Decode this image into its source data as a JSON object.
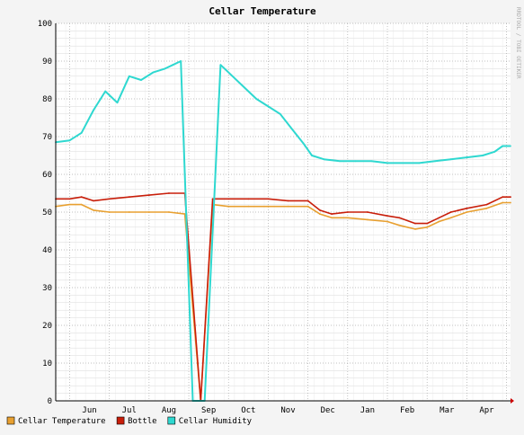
{
  "chart_data": {
    "type": "line",
    "title": "Cellar Temperature",
    "watermark": "RRDTOOL / TOBI OETIKER",
    "ylim": [
      0,
      100
    ],
    "y_ticks": [
      0,
      10,
      20,
      30,
      40,
      50,
      60,
      70,
      80,
      90,
      100
    ],
    "x_months": [
      "Jun",
      "Jul",
      "Aug",
      "Sep",
      "Oct",
      "Nov",
      "Dec",
      "Jan",
      "Feb",
      "Mar",
      "Apr"
    ],
    "x_month_positions": [
      0.5,
      1.5,
      2.5,
      3.5,
      4.5,
      5.5,
      6.5,
      7.5,
      8.5,
      9.5,
      10.5
    ],
    "x_range": [
      -0.35,
      11.1
    ],
    "grid": true,
    "legend_position": "bottom",
    "colors": {
      "background": "#f4f4f4",
      "grid": "#aaaaaa",
      "axis": "#000000",
      "cellar_temperature": "#e8a030",
      "bottle": "#c81e0a",
      "cellar_humidity": "#2ed8d0",
      "humidity_range": "#1a7a6a"
    },
    "series": [
      {
        "name": "Cellar Temperature",
        "color": "#e8a030",
        "x": [
          -0.35,
          0,
          0.3,
          0.6,
          1,
          1.5,
          2,
          2.5,
          2.9,
          3.3,
          3.6,
          4,
          4.5,
          5,
          5.5,
          6,
          6.3,
          6.6,
          7,
          7.5,
          8,
          8.3,
          8.7,
          9,
          9.3,
          9.6,
          10,
          10.5,
          10.9,
          11.1
        ],
        "values": [
          51.5,
          52,
          52,
          50.5,
          50,
          50,
          50,
          50,
          49.5,
          0,
          52,
          51.5,
          51.5,
          51.5,
          51.5,
          51.5,
          49.5,
          48.5,
          48.5,
          48,
          47.5,
          46.5,
          45.5,
          46,
          47.5,
          48.5,
          50,
          51,
          52.5,
          52.5
        ]
      },
      {
        "name": "Bottle",
        "color": "#c81e0a",
        "x": [
          -0.35,
          0,
          0.3,
          0.6,
          1,
          1.5,
          2,
          2.5,
          2.9,
          3.3,
          3.6,
          4,
          4.5,
          5,
          5.5,
          6,
          6.3,
          6.6,
          7,
          7.5,
          8,
          8.3,
          8.7,
          9,
          9.3,
          9.6,
          10,
          10.5,
          10.9,
          11.1
        ],
        "values": [
          53.5,
          53.5,
          54,
          53,
          53.5,
          54,
          54.5,
          55,
          55,
          0,
          53.5,
          53.5,
          53.5,
          53.5,
          53,
          53,
          50.5,
          49.5,
          50,
          50,
          49,
          48.5,
          47,
          47,
          48.5,
          50,
          51,
          52,
          54,
          54
        ]
      },
      {
        "name": "Cellar Humidity",
        "color": "#2ed8d0",
        "x": [
          -0.35,
          0,
          0.3,
          0.6,
          0.9,
          1.2,
          1.5,
          1.8,
          2.1,
          2.4,
          2.6,
          2.8,
          3.1,
          3.4,
          3.8,
          4.1,
          4.4,
          4.7,
          5,
          5.3,
          5.6,
          5.9,
          6.1,
          6.4,
          6.8,
          7.2,
          7.6,
          8,
          8.4,
          8.8,
          9.2,
          9.6,
          10,
          10.4,
          10.7,
          10.9,
          11.1
        ],
        "values": [
          68.5,
          69,
          71,
          77,
          82,
          79,
          86,
          85,
          87,
          88,
          89,
          90,
          0,
          0,
          89,
          86,
          83,
          80,
          78,
          76,
          72,
          68,
          65,
          64,
          63.5,
          63.5,
          63.5,
          63,
          63,
          63,
          63.5,
          64,
          64.5,
          65,
          66,
          67.5,
          67.5
        ]
      }
    ]
  }
}
